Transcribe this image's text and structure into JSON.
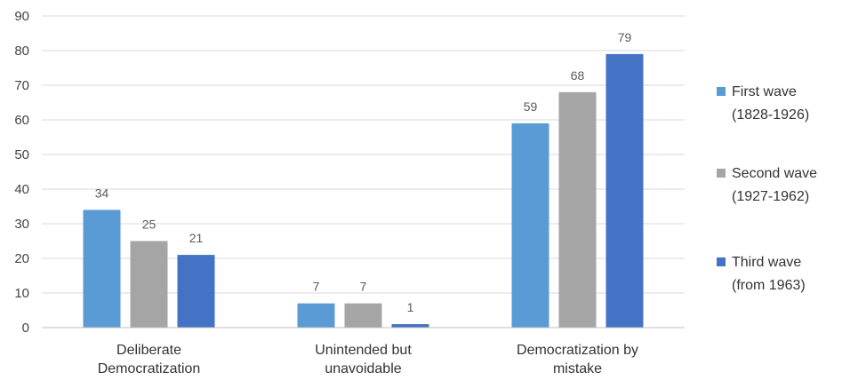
{
  "chart_data": {
    "type": "bar",
    "title": "",
    "xlabel": "",
    "ylabel": "",
    "ylim": [
      0,
      90
    ],
    "yticks": [
      0,
      10,
      20,
      30,
      40,
      50,
      60,
      70,
      80,
      90
    ],
    "grid": true,
    "legend_position": "right",
    "categories": [
      [
        "Deliberate",
        "Democratization"
      ],
      [
        "Unintended but",
        "unavoidable"
      ],
      [
        "Democratization by",
        "mistake"
      ]
    ],
    "series": [
      {
        "name": [
          "First wave",
          "(1828-1926)"
        ],
        "color": "#5b9bd5",
        "values": [
          34,
          7,
          59
        ]
      },
      {
        "name": [
          "Second wave",
          "(1927-1962)"
        ],
        "color": "#a5a5a5",
        "values": [
          25,
          7,
          68
        ]
      },
      {
        "name": [
          "Third wave",
          "(from 1963)"
        ],
        "color": "#4472c4",
        "values": [
          21,
          1,
          79
        ]
      }
    ]
  }
}
